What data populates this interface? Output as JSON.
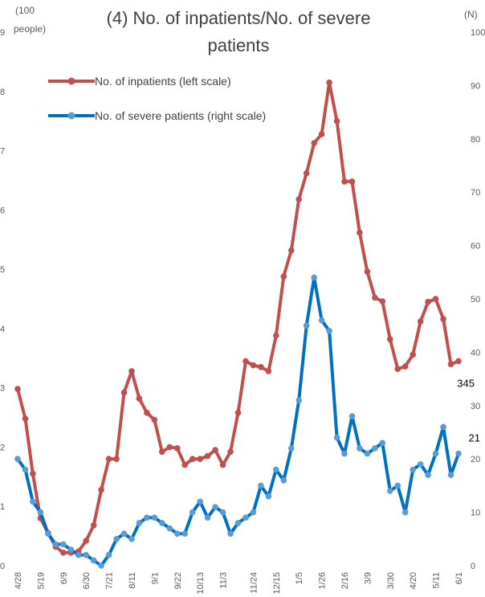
{
  "chart_data": {
    "type": "line",
    "title_line1": "(4) No. of inpatients/No. of severe",
    "title_line2": "patients",
    "left_unit_line1": "(100",
    "left_unit_line2": "people)",
    "right_unit": "(N)",
    "left_axis": {
      "ylim": [
        0,
        9
      ],
      "ticks": [
        0,
        1,
        2,
        3,
        4,
        5,
        6,
        7,
        8,
        9
      ]
    },
    "right_axis": {
      "ylim": [
        0,
        100
      ],
      "ticks": [
        0,
        10,
        20,
        30,
        40,
        50,
        60,
        70,
        80,
        90,
        100
      ]
    },
    "x_tick_labels": [
      "4/28",
      "5/19",
      "6/9",
      "6/30",
      "7/21",
      "8/11",
      "9/1",
      "9/22",
      "10/13",
      "11/3",
      "11/24",
      "12/15",
      "1/5",
      "1/26",
      "2/16",
      "3/9",
      "3/30",
      "4/20",
      "5/11",
      "6/1"
    ],
    "legend_position": "top-left",
    "grid": false,
    "series": [
      {
        "name": "No. of inpatients (left scale)",
        "axis": "left",
        "color": "#C0504D",
        "values": [
          2.98,
          2.48,
          1.55,
          0.8,
          0.55,
          0.32,
          0.22,
          0.22,
          0.24,
          0.42,
          0.68,
          1.28,
          1.8,
          1.8,
          2.92,
          3.28,
          2.82,
          2.58,
          2.46,
          1.92,
          2.0,
          1.98,
          1.7,
          1.8,
          1.8,
          1.85,
          1.95,
          1.7,
          1.92,
          2.58,
          3.45,
          3.38,
          3.35,
          3.28,
          3.88,
          4.88,
          5.32,
          6.18,
          6.62,
          7.13,
          7.28,
          8.15,
          7.5,
          6.48,
          6.48,
          5.62,
          4.96,
          4.52,
          4.46,
          3.82,
          3.32,
          3.36,
          3.56,
          4.12,
          4.45,
          4.5,
          4.16,
          3.4,
          3.45
        ],
        "data_label": "345"
      },
      {
        "name": "No. of severe patients (right scale)",
        "axis": "right",
        "color": "#0070C0",
        "values": [
          20,
          18,
          12,
          10,
          6,
          4,
          4,
          3,
          2,
          2,
          1,
          0,
          2,
          5,
          6,
          5,
          8,
          9,
          9,
          8,
          7,
          6,
          6,
          10,
          12,
          9,
          11,
          10,
          6,
          8,
          9,
          10,
          15,
          13,
          18,
          16,
          22,
          31,
          45,
          54,
          46,
          44,
          24,
          21,
          28,
          22,
          21,
          22,
          23,
          14,
          15,
          10,
          18,
          19,
          17,
          21,
          26,
          17,
          21
        ],
        "data_label": "21"
      }
    ]
  }
}
